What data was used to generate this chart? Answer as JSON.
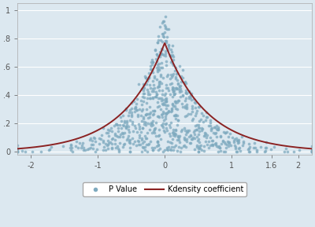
{
  "xlim": [
    -2.2,
    2.2
  ],
  "ylim": [
    -0.02,
    1.05
  ],
  "xticks": [
    -2,
    -1,
    0,
    1,
    1.6,
    2
  ],
  "ytick_vals": [
    0,
    0.2,
    0.4,
    0.6,
    0.8,
    1
  ],
  "ytick_labels": [
    "0",
    ".2",
    ".4",
    ".6",
    ".8",
    "1"
  ],
  "dot_color": "#7eaabf",
  "line_color": "#8b2222",
  "bg_color": "#dce8f0",
  "grid_color": "#ffffff",
  "dot_size": 7,
  "dot_alpha": 0.75,
  "legend_labels": [
    "P Value",
    "Kdensity coefficient"
  ],
  "n_dots": 800,
  "seed": 12,
  "kde_mean": 0.0,
  "kde_b": 0.62,
  "kde_peak": 0.77,
  "fig_width": 4.0,
  "fig_height": 2.89,
  "dpi": 100
}
